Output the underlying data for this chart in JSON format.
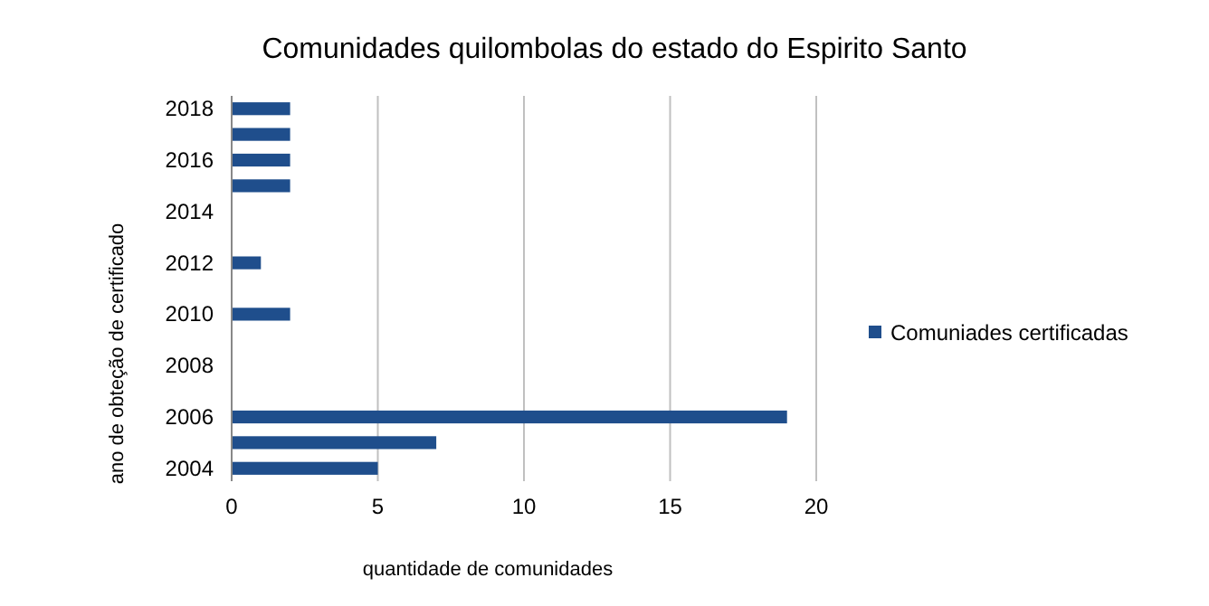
{
  "chart_data": {
    "type": "bar",
    "orientation": "horizontal",
    "title": "Comunidades quilombolas do estado do Espirito Santo",
    "xlabel": "quantidade de comunidades",
    "ylabel": "ano de obteção de certificado",
    "categories": [
      "2018",
      null,
      "2016",
      null,
      "2014",
      null,
      "2012",
      null,
      "2010",
      null,
      "2008",
      null,
      "2006",
      null,
      "2004"
    ],
    "series": [
      {
        "name": "Comuniades certificadas",
        "color": "#1f4e8c",
        "values": [
          2,
          2,
          2,
          2,
          null,
          null,
          1,
          null,
          2,
          null,
          null,
          null,
          19,
          7,
          5
        ]
      }
    ],
    "xlim": [
      0,
      20
    ],
    "xticks": [
      0,
      5,
      10,
      15,
      20
    ],
    "grid": "x",
    "legend": "right"
  }
}
